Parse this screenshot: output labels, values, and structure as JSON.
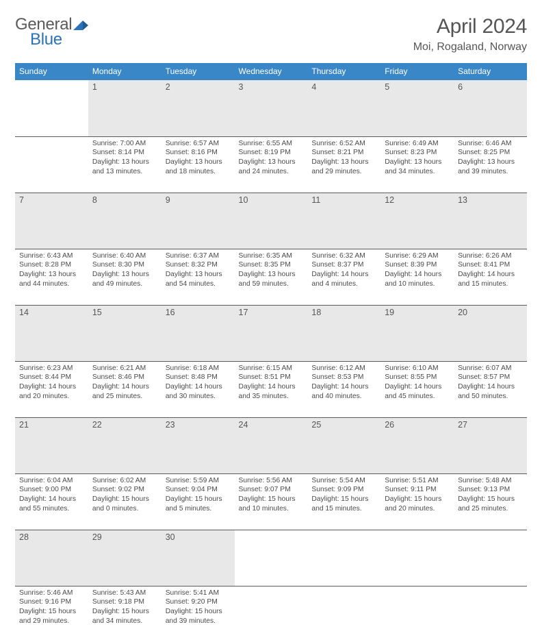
{
  "logo": {
    "general": "General",
    "blue": "Blue"
  },
  "title": "April 2024",
  "location": "Moi, Rogaland, Norway",
  "colors": {
    "header_bg": "#3a87c8",
    "header_text": "#ffffff",
    "daynum_bg": "#e8e8e8",
    "border": "#5a5a5a",
    "text": "#4a4a4a",
    "logo_blue": "#2a71b8"
  },
  "weekdays": [
    "Sunday",
    "Monday",
    "Tuesday",
    "Wednesday",
    "Thursday",
    "Friday",
    "Saturday"
  ],
  "weeks": [
    [
      null,
      {
        "n": "1",
        "sr": "7:00 AM",
        "ss": "8:14 PM",
        "dl": "13 hours and 13 minutes."
      },
      {
        "n": "2",
        "sr": "6:57 AM",
        "ss": "8:16 PM",
        "dl": "13 hours and 18 minutes."
      },
      {
        "n": "3",
        "sr": "6:55 AM",
        "ss": "8:19 PM",
        "dl": "13 hours and 24 minutes."
      },
      {
        "n": "4",
        "sr": "6:52 AM",
        "ss": "8:21 PM",
        "dl": "13 hours and 29 minutes."
      },
      {
        "n": "5",
        "sr": "6:49 AM",
        "ss": "8:23 PM",
        "dl": "13 hours and 34 minutes."
      },
      {
        "n": "6",
        "sr": "6:46 AM",
        "ss": "8:25 PM",
        "dl": "13 hours and 39 minutes."
      }
    ],
    [
      {
        "n": "7",
        "sr": "6:43 AM",
        "ss": "8:28 PM",
        "dl": "13 hours and 44 minutes."
      },
      {
        "n": "8",
        "sr": "6:40 AM",
        "ss": "8:30 PM",
        "dl": "13 hours and 49 minutes."
      },
      {
        "n": "9",
        "sr": "6:37 AM",
        "ss": "8:32 PM",
        "dl": "13 hours and 54 minutes."
      },
      {
        "n": "10",
        "sr": "6:35 AM",
        "ss": "8:35 PM",
        "dl": "13 hours and 59 minutes."
      },
      {
        "n": "11",
        "sr": "6:32 AM",
        "ss": "8:37 PM",
        "dl": "14 hours and 4 minutes."
      },
      {
        "n": "12",
        "sr": "6:29 AM",
        "ss": "8:39 PM",
        "dl": "14 hours and 10 minutes."
      },
      {
        "n": "13",
        "sr": "6:26 AM",
        "ss": "8:41 PM",
        "dl": "14 hours and 15 minutes."
      }
    ],
    [
      {
        "n": "14",
        "sr": "6:23 AM",
        "ss": "8:44 PM",
        "dl": "14 hours and 20 minutes."
      },
      {
        "n": "15",
        "sr": "6:21 AM",
        "ss": "8:46 PM",
        "dl": "14 hours and 25 minutes."
      },
      {
        "n": "16",
        "sr": "6:18 AM",
        "ss": "8:48 PM",
        "dl": "14 hours and 30 minutes."
      },
      {
        "n": "17",
        "sr": "6:15 AM",
        "ss": "8:51 PM",
        "dl": "14 hours and 35 minutes."
      },
      {
        "n": "18",
        "sr": "6:12 AM",
        "ss": "8:53 PM",
        "dl": "14 hours and 40 minutes."
      },
      {
        "n": "19",
        "sr": "6:10 AM",
        "ss": "8:55 PM",
        "dl": "14 hours and 45 minutes."
      },
      {
        "n": "20",
        "sr": "6:07 AM",
        "ss": "8:57 PM",
        "dl": "14 hours and 50 minutes."
      }
    ],
    [
      {
        "n": "21",
        "sr": "6:04 AM",
        "ss": "9:00 PM",
        "dl": "14 hours and 55 minutes."
      },
      {
        "n": "22",
        "sr": "6:02 AM",
        "ss": "9:02 PM",
        "dl": "15 hours and 0 minutes."
      },
      {
        "n": "23",
        "sr": "5:59 AM",
        "ss": "9:04 PM",
        "dl": "15 hours and 5 minutes."
      },
      {
        "n": "24",
        "sr": "5:56 AM",
        "ss": "9:07 PM",
        "dl": "15 hours and 10 minutes."
      },
      {
        "n": "25",
        "sr": "5:54 AM",
        "ss": "9:09 PM",
        "dl": "15 hours and 15 minutes."
      },
      {
        "n": "26",
        "sr": "5:51 AM",
        "ss": "9:11 PM",
        "dl": "15 hours and 20 minutes."
      },
      {
        "n": "27",
        "sr": "5:48 AM",
        "ss": "9:13 PM",
        "dl": "15 hours and 25 minutes."
      }
    ],
    [
      {
        "n": "28",
        "sr": "5:46 AM",
        "ss": "9:16 PM",
        "dl": "15 hours and 29 minutes."
      },
      {
        "n": "29",
        "sr": "5:43 AM",
        "ss": "9:18 PM",
        "dl": "15 hours and 34 minutes."
      },
      {
        "n": "30",
        "sr": "5:41 AM",
        "ss": "9:20 PM",
        "dl": "15 hours and 39 minutes."
      },
      null,
      null,
      null,
      null
    ]
  ],
  "labels": {
    "sunrise": "Sunrise:",
    "sunset": "Sunset:",
    "daylight": "Daylight:"
  }
}
